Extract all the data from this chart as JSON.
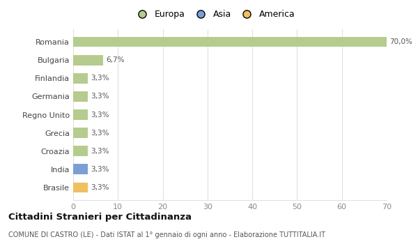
{
  "categories": [
    "Romania",
    "Bulgaria",
    "Finlandia",
    "Germania",
    "Regno Unito",
    "Grecia",
    "Croazia",
    "India",
    "Brasile"
  ],
  "values": [
    70.0,
    6.7,
    3.3,
    3.3,
    3.3,
    3.3,
    3.3,
    3.3,
    3.3
  ],
  "colors": [
    "#b5cc8e",
    "#b5cc8e",
    "#b5cc8e",
    "#b5cc8e",
    "#b5cc8e",
    "#b5cc8e",
    "#b5cc8e",
    "#7b9fd4",
    "#f0c060"
  ],
  "labels": [
    "70,0%",
    "6,7%",
    "3,3%",
    "3,3%",
    "3,3%",
    "3,3%",
    "3,3%",
    "3,3%",
    "3,3%"
  ],
  "xlim": [
    0,
    70
  ],
  "xticks": [
    0,
    10,
    20,
    30,
    40,
    50,
    60,
    70
  ],
  "legend_labels": [
    "Europa",
    "Asia",
    "America"
  ],
  "legend_colors": [
    "#b5cc8e",
    "#7b9fd4",
    "#f0c060"
  ],
  "title": "Cittadini Stranieri per Cittadinanza",
  "subtitle": "COMUNE DI CASTRO (LE) - Dati ISTAT al 1° gennaio di ogni anno - Elaborazione TUTTITALIA.IT",
  "background_color": "#ffffff",
  "plot_bg_color": "#ffffff",
  "grid_color": "#e0e0e0"
}
